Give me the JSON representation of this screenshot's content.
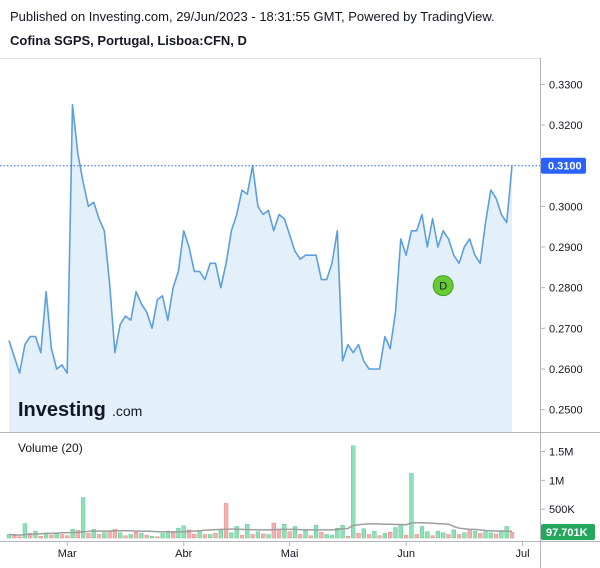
{
  "header": {
    "published": "Published on Investing.com, 29/Jun/2023 - 18:31:55 GMT, Powered by TradingView.",
    "symbol": "Cofina SGPS, Portugal, Lisboa:CFN, D"
  },
  "logo": {
    "brand": "Investing",
    "suffix": ".com"
  },
  "colors": {
    "line": "#5b9fe0",
    "area": "#e3f0fa",
    "price_badge": "#2962ff",
    "vol_up": "#8fe0b8",
    "vol_down": "#f5b0b0",
    "vol_ma": "#9e9e9e",
    "vol_badge": "#26a65b",
    "marker": "#66cc33"
  },
  "chart_data": [
    {
      "type": "line",
      "title": "Cofina SGPS, Portugal, Lisboa:CFN, D",
      "ylim": [
        0.2445,
        0.3365
      ],
      "y_ticks": [
        "0.3300",
        "0.3200",
        "0.3000",
        "0.2900",
        "0.2800",
        "0.2700",
        "0.2600",
        "0.2500"
      ],
      "x_ticks": [
        "Mar",
        "Abr",
        "Mai",
        "Jun",
        "Jul"
      ],
      "last_value_label": "0.3100",
      "last_value": 0.31,
      "marker": {
        "label": "D",
        "index": 82,
        "value": 0.2805
      },
      "values": [
        0.267,
        0.263,
        0.259,
        0.266,
        0.268,
        0.268,
        0.264,
        0.279,
        0.265,
        0.26,
        0.261,
        0.259,
        0.325,
        0.313,
        0.306,
        0.3,
        0.301,
        0.297,
        0.294,
        0.281,
        0.264,
        0.271,
        0.273,
        0.272,
        0.279,
        0.276,
        0.274,
        0.27,
        0.277,
        0.278,
        0.272,
        0.28,
        0.284,
        0.294,
        0.29,
        0.284,
        0.284,
        0.282,
        0.286,
        0.286,
        0.28,
        0.286,
        0.294,
        0.298,
        0.304,
        0.303,
        0.31,
        0.3,
        0.298,
        0.299,
        0.294,
        0.298,
        0.297,
        0.293,
        0.289,
        0.287,
        0.288,
        0.288,
        0.288,
        0.282,
        0.282,
        0.286,
        0.294,
        0.262,
        0.266,
        0.264,
        0.266,
        0.262,
        0.26,
        0.26,
        0.26,
        0.268,
        0.265,
        0.274,
        0.292,
        0.288,
        0.294,
        0.294,
        0.298,
        0.29,
        0.297,
        0.29,
        0.294,
        0.292,
        0.288,
        0.286,
        0.29,
        0.292,
        0.288,
        0.286,
        0.296,
        0.304,
        0.302,
        0.298,
        0.296,
        0.31
      ]
    },
    {
      "type": "bar",
      "title": "Volume (20)",
      "ylim": [
        0,
        1700000
      ],
      "y_ticks": [
        "1.5M",
        "1M",
        "500K"
      ],
      "last_value_label": "97.701K",
      "up": [
        true,
        false,
        false,
        true,
        false,
        true,
        false,
        true,
        false,
        true,
        false,
        false,
        true,
        false,
        true,
        false,
        true,
        false,
        true,
        false,
        false,
        true,
        false,
        true,
        false,
        true,
        false,
        true,
        false,
        true,
        true,
        false,
        true,
        true,
        false,
        false,
        true,
        false,
        true,
        false,
        true,
        false,
        true,
        true,
        false,
        true,
        false,
        true,
        false,
        true,
        false,
        false,
        true,
        false,
        true,
        false,
        true,
        false,
        true,
        false,
        true,
        true,
        true,
        true,
        false,
        true,
        false,
        true,
        false,
        true,
        false,
        true,
        false,
        true,
        true,
        false,
        true,
        false,
        true,
        true,
        false,
        true,
        true,
        false,
        true,
        false,
        true,
        false,
        true,
        false,
        true,
        true,
        false,
        true,
        true,
        false
      ],
      "values": [
        60000,
        40000,
        20000,
        250000,
        80000,
        120000,
        30000,
        90000,
        50000,
        70000,
        60000,
        40000,
        150000,
        130000,
        700000,
        80000,
        150000,
        60000,
        90000,
        110000,
        150000,
        90000,
        40000,
        60000,
        100000,
        80000,
        50000,
        30000,
        20000,
        80000,
        120000,
        90000,
        170000,
        210000,
        140000,
        70000,
        120000,
        60000,
        60000,
        80000,
        140000,
        600000,
        90000,
        200000,
        50000,
        240000,
        60000,
        110000,
        70000,
        60000,
        260000,
        140000,
        240000,
        110000,
        200000,
        60000,
        130000,
        40000,
        220000,
        100000,
        60000,
        50000,
        170000,
        220000,
        30000,
        1600000,
        80000,
        160000,
        60000,
        120000,
        40000,
        80000,
        100000,
        180000,
        240000,
        50000,
        1120000,
        60000,
        200000,
        110000,
        40000,
        120000,
        90000,
        60000,
        140000,
        60000,
        90000,
        150000,
        120000,
        80000,
        110000,
        90000,
        70000,
        130000,
        200000,
        97701
      ],
      "ma": [
        60000,
        55000,
        50000,
        60000,
        65000,
        70000,
        75000,
        80000,
        80000,
        85000,
        90000,
        90000,
        95000,
        100000,
        110000,
        115000,
        120000,
        120000,
        120000,
        120000,
        125000,
        125000,
        125000,
        125000,
        120000,
        120000,
        120000,
        115000,
        110000,
        110000,
        110000,
        105000,
        110000,
        110000,
        115000,
        120000,
        125000,
        135000,
        140000,
        145000,
        150000,
        150000,
        155000,
        155000,
        150000,
        145000,
        145000,
        140000,
        140000,
        140000,
        145000,
        150000,
        150000,
        150000,
        150000,
        145000,
        140000,
        140000,
        140000,
        140000,
        140000,
        140000,
        150000,
        160000,
        165000,
        220000,
        230000,
        240000,
        245000,
        245000,
        245000,
        240000,
        240000,
        235000,
        235000,
        230000,
        260000,
        265000,
        265000,
        260000,
        255000,
        250000,
        245000,
        240000,
        200000,
        170000,
        160000,
        150000,
        150000,
        140000,
        130000,
        125000,
        120000,
        120000,
        120000,
        115000
      ]
    }
  ]
}
